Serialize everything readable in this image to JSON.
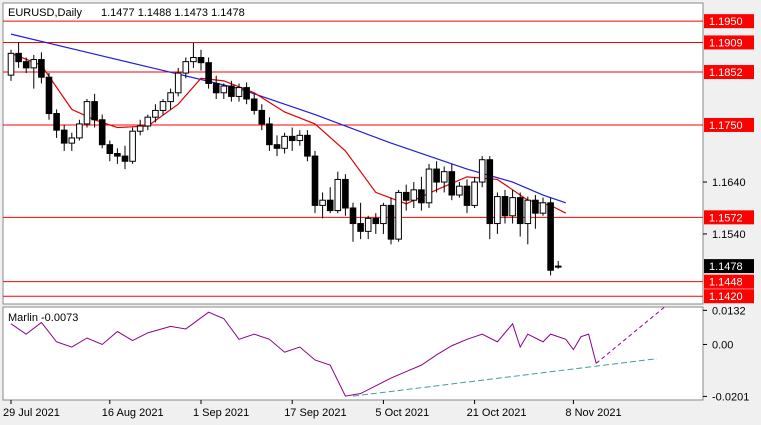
{
  "chart_data": [
    {
      "type": "candlestick",
      "title": "EURUSD,Daily",
      "ohlc_header": "1.1477 1.1488 1.1473 1.1478",
      "current_price": "1.1478",
      "y_ticks": [
        "1.1640",
        "1.1540"
      ],
      "ylim": [
        1.1405,
        1.1985
      ],
      "x_ticks": [
        {
          "label": "29 Jul 2021",
          "index": 0
        },
        {
          "label": "16 Aug 2021",
          "index": 13
        },
        {
          "label": "1 Sep 2021",
          "index": 25
        },
        {
          "label": "17 Sep 2021",
          "index": 37
        },
        {
          "label": "5 Oct 2021",
          "index": 49
        },
        {
          "label": "21 Oct 2021",
          "index": 61
        },
        {
          "label": "8 Nov 2021",
          "index": 74
        }
      ],
      "levels": [
        {
          "value": 1.195,
          "label": "1.1950"
        },
        {
          "value": 1.1909,
          "label": "1.1909"
        },
        {
          "value": 1.1852,
          "label": "1.1852"
        },
        {
          "value": 1.175,
          "label": "1.1750"
        },
        {
          "value": 1.1572,
          "label": "1.1572"
        },
        {
          "value": 1.1448,
          "label": "1.1448"
        },
        {
          "value": 1.142,
          "label": "1.1420"
        }
      ],
      "candles": [
        [
          1.1846,
          1.1895,
          1.1835,
          1.1888
        ],
        [
          1.1888,
          1.1909,
          1.186,
          1.1872
        ],
        [
          1.1872,
          1.188,
          1.185,
          1.186
        ],
        [
          1.186,
          1.1885,
          1.182,
          1.1876
        ],
        [
          1.1876,
          1.189,
          1.183,
          1.1842
        ],
        [
          1.1842,
          1.185,
          1.176,
          1.1772
        ],
        [
          1.1772,
          1.178,
          1.1725,
          1.174
        ],
        [
          1.174,
          1.175,
          1.17,
          1.1715
        ],
        [
          1.1715,
          1.1735,
          1.17,
          1.1725
        ],
        [
          1.1725,
          1.176,
          1.172,
          1.1752
        ],
        [
          1.1752,
          1.18,
          1.1745,
          1.1795
        ],
        [
          1.1795,
          1.181,
          1.1745,
          1.176
        ],
        [
          1.176,
          1.177,
          1.1705,
          1.1712
        ],
        [
          1.1712,
          1.172,
          1.168,
          1.1695
        ],
        [
          1.1695,
          1.1705,
          1.1675,
          1.169
        ],
        [
          1.169,
          1.171,
          1.1665,
          1.168
        ],
        [
          1.168,
          1.1745,
          1.1675,
          1.1738
        ],
        [
          1.1738,
          1.176,
          1.173,
          1.1748
        ],
        [
          1.1748,
          1.177,
          1.174,
          1.1765
        ],
        [
          1.1765,
          1.179,
          1.1755,
          1.1778
        ],
        [
          1.1778,
          1.18,
          1.177,
          1.1795
        ],
        [
          1.1795,
          1.182,
          1.178,
          1.1812
        ],
        [
          1.1812,
          1.186,
          1.1805,
          1.185
        ],
        [
          1.185,
          1.188,
          1.184,
          1.1872
        ],
        [
          1.1872,
          1.1908,
          1.186,
          1.188
        ],
        [
          1.188,
          1.1895,
          1.1855,
          1.187
        ],
        [
          1.187,
          1.188,
          1.182,
          1.183
        ],
        [
          1.183,
          1.1845,
          1.18,
          1.1812
        ],
        [
          1.1812,
          1.183,
          1.18,
          1.1825
        ],
        [
          1.1825,
          1.1835,
          1.1795,
          1.1805
        ],
        [
          1.1805,
          1.183,
          1.1795,
          1.1822
        ],
        [
          1.1822,
          1.1832,
          1.179,
          1.18
        ],
        [
          1.18,
          1.181,
          1.177,
          1.1778
        ],
        [
          1.1778,
          1.179,
          1.174,
          1.1752
        ],
        [
          1.1752,
          1.1765,
          1.17,
          1.1712
        ],
        [
          1.1712,
          1.173,
          1.169,
          1.1705
        ],
        [
          1.1705,
          1.1735,
          1.1695,
          1.1728
        ],
        [
          1.1728,
          1.1745,
          1.17,
          1.172
        ],
        [
          1.172,
          1.174,
          1.171,
          1.173
        ],
        [
          1.173,
          1.174,
          1.168,
          1.169
        ],
        [
          1.169,
          1.17,
          1.158,
          1.1595
        ],
        [
          1.1595,
          1.162,
          1.157,
          1.1605
        ],
        [
          1.1605,
          1.163,
          1.158,
          1.1585
        ],
        [
          1.1585,
          1.166,
          1.158,
          1.1645
        ],
        [
          1.1645,
          1.1655,
          1.1575,
          1.159
        ],
        [
          1.159,
          1.16,
          1.1525,
          1.156
        ],
        [
          1.156,
          1.16,
          1.153,
          1.1545
        ],
        [
          1.1545,
          1.1575,
          1.153,
          1.157
        ],
        [
          1.157,
          1.158,
          1.154,
          1.156
        ],
        [
          1.156,
          1.16,
          1.154,
          1.1595
        ],
        [
          1.1595,
          1.161,
          1.152,
          1.153
        ],
        [
          1.153,
          1.1625,
          1.1525,
          1.162
        ],
        [
          1.162,
          1.1635,
          1.1585,
          1.1605
        ],
        [
          1.1605,
          1.164,
          1.159,
          1.1625
        ],
        [
          1.1625,
          1.165,
          1.1585,
          1.16
        ],
        [
          1.16,
          1.1675,
          1.159,
          1.1665
        ],
        [
          1.1665,
          1.168,
          1.162,
          1.164
        ],
        [
          1.164,
          1.167,
          1.162,
          1.166
        ],
        [
          1.166,
          1.1675,
          1.1605,
          1.1615
        ],
        [
          1.1615,
          1.164,
          1.161,
          1.1632
        ],
        [
          1.1632,
          1.1645,
          1.158,
          1.1595
        ],
        [
          1.1595,
          1.165,
          1.159,
          1.164
        ],
        [
          1.164,
          1.169,
          1.163,
          1.1683
        ],
        [
          1.1683,
          1.169,
          1.153,
          1.156
        ],
        [
          1.156,
          1.162,
          1.154,
          1.1612
        ],
        [
          1.1612,
          1.1625,
          1.156,
          1.1575
        ],
        [
          1.1575,
          1.1625,
          1.156,
          1.161
        ],
        [
          1.161,
          1.162,
          1.1535,
          1.156
        ],
        [
          1.156,
          1.1612,
          1.152,
          1.1605
        ],
        [
          1.1605,
          1.1615,
          1.155,
          1.158
        ],
        [
          1.158,
          1.161,
          1.1575,
          1.16
        ],
        [
          1.16,
          1.161,
          1.146,
          1.147
        ],
        [
          1.1477,
          1.1488,
          1.1473,
          1.1478
        ]
      ],
      "ma_red": [
        [
          0,
          1.1888
        ],
        [
          4,
          1.1865
        ],
        [
          8,
          1.178
        ],
        [
          11,
          1.176
        ],
        [
          14,
          1.1745
        ],
        [
          18,
          1.1748
        ],
        [
          22,
          1.179
        ],
        [
          25,
          1.184
        ],
        [
          28,
          1.1835
        ],
        [
          32,
          1.1812
        ],
        [
          36,
          1.1775
        ],
        [
          40,
          1.1752
        ],
        [
          44,
          1.17
        ],
        [
          48,
          1.162
        ],
        [
          52,
          1.1598
        ],
        [
          56,
          1.1625
        ],
        [
          60,
          1.165
        ],
        [
          64,
          1.1645
        ],
        [
          68,
          1.1605
        ],
        [
          71,
          1.1595
        ],
        [
          73,
          1.158
        ]
      ],
      "ma_blue": [
        [
          0,
          1.1925
        ],
        [
          10,
          1.189
        ],
        [
          20,
          1.1855
        ],
        [
          30,
          1.182
        ],
        [
          40,
          1.177
        ],
        [
          50,
          1.1715
        ],
        [
          60,
          1.1665
        ],
        [
          66,
          1.164
        ],
        [
          70,
          1.1615
        ],
        [
          73,
          1.16
        ]
      ]
    },
    {
      "type": "line",
      "title": "Marlin -0.0073",
      "y_ticks": [
        "0.0132",
        "0.00",
        "-0.0201"
      ],
      "ylim": [
        -0.0215,
        0.0145
      ],
      "series_values": [
        [
          0,
          0.008
        ],
        [
          2,
          0.004
        ],
        [
          4,
          0.0085
        ],
        [
          6,
          0.001
        ],
        [
          8,
          -0.001
        ],
        [
          10,
          0.0025
        ],
        [
          12,
          0.0
        ],
        [
          14,
          0.005
        ],
        [
          16,
          0.0015
        ],
        [
          18,
          0.0045
        ],
        [
          21,
          0.007
        ],
        [
          23,
          0.006
        ],
        [
          26,
          0.0125
        ],
        [
          28,
          0.01
        ],
        [
          30,
          0.002
        ],
        [
          32,
          0.004
        ],
        [
          34,
          0.002
        ],
        [
          36,
          -0.003
        ],
        [
          38,
          -0.001
        ],
        [
          40,
          -0.006
        ],
        [
          42,
          -0.008
        ],
        [
          44,
          -0.02
        ],
        [
          46,
          -0.019
        ],
        [
          48,
          -0.016
        ],
        [
          50,
          -0.013
        ],
        [
          52,
          -0.0105
        ],
        [
          54,
          -0.008
        ],
        [
          56,
          -0.004
        ],
        [
          58,
          -0.0005
        ],
        [
          60,
          0.002
        ],
        [
          62,
          0.004
        ],
        [
          64,
          0.001
        ],
        [
          66,
          0.008
        ],
        [
          67,
          -0.001
        ],
        [
          68,
          0.004
        ],
        [
          70,
          0.001
        ],
        [
          71,
          0.004
        ],
        [
          73,
          0.002
        ],
        [
          74,
          -0.002
        ],
        [
          75,
          0.003
        ],
        [
          76,
          0.004
        ],
        [
          77,
          -0.0073
        ]
      ],
      "series_projection": [
        [
          77,
          -0.0073
        ],
        [
          86,
          0.0145
        ]
      ],
      "trend_line": [
        [
          45,
          -0.02
        ],
        [
          85,
          -0.0055
        ]
      ]
    }
  ],
  "colors": {
    "background": "#ffffff",
    "level_line": "#ff0000",
    "ma_red": "#e00000",
    "ma_blue": "#1f1fd8",
    "oscillator": "#8b008b",
    "trend": "#4a9a9a",
    "level_label_bg": "#ff0000",
    "price_label_bg": "#000000"
  }
}
